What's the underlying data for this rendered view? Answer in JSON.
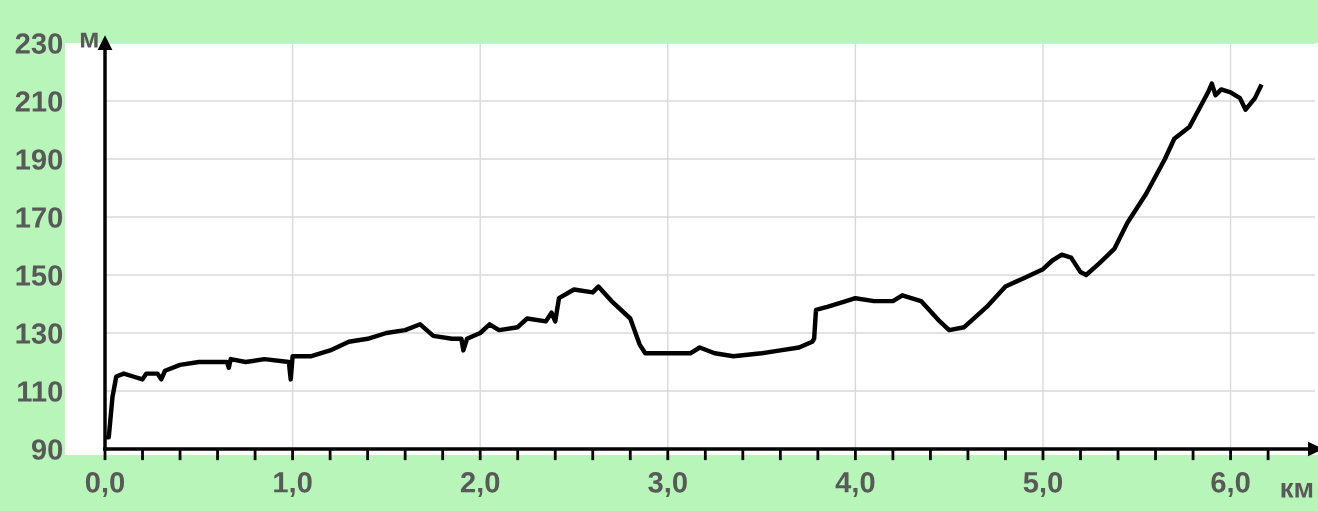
{
  "chart_data": {
    "type": "line",
    "xlabel": "км",
    "ylabel": "м",
    "x": [
      0.0,
      0.02,
      0.04,
      0.06,
      0.1,
      0.15,
      0.2,
      0.22,
      0.28,
      0.3,
      0.32,
      0.4,
      0.5,
      0.65,
      0.66,
      0.67,
      0.75,
      0.85,
      0.98,
      0.99,
      1.0,
      1.1,
      1.2,
      1.3,
      1.4,
      1.5,
      1.6,
      1.68,
      1.75,
      1.85,
      1.9,
      1.91,
      1.93,
      2.0,
      2.05,
      2.1,
      2.2,
      2.25,
      2.35,
      2.38,
      2.4,
      2.42,
      2.5,
      2.6,
      2.63,
      2.7,
      2.8,
      2.85,
      2.88,
      3.0,
      3.12,
      3.17,
      3.25,
      3.35,
      3.5,
      3.6,
      3.7,
      3.77,
      3.78,
      3.79,
      3.85,
      3.95,
      4.0,
      4.1,
      4.2,
      4.25,
      4.35,
      4.45,
      4.5,
      4.58,
      4.7,
      4.8,
      4.9,
      5.0,
      5.05,
      5.1,
      5.15,
      5.2,
      5.23,
      5.3,
      5.38,
      5.45,
      5.55,
      5.65,
      5.7,
      5.78,
      5.83,
      5.88,
      5.9,
      5.92,
      5.95,
      6.0,
      6.05,
      6.08,
      6.13,
      6.16
    ],
    "series": [
      {
        "color": "#000000",
        "values": [
          94,
          94,
          108,
          115,
          116,
          115,
          114,
          116,
          116,
          114,
          117,
          119,
          120,
          120,
          118,
          121,
          120,
          121,
          120,
          114,
          122,
          122,
          124,
          127,
          128,
          130,
          131,
          133,
          129,
          128,
          128,
          124,
          128,
          130,
          133,
          131,
          132,
          135,
          134,
          137,
          134,
          142,
          145,
          144,
          146,
          141,
          135,
          126,
          123,
          123,
          123,
          125,
          123,
          122,
          123,
          124,
          125,
          127,
          128,
          138,
          139,
          141,
          142,
          141,
          141,
          143,
          141,
          134,
          131,
          132,
          139,
          146,
          149,
          152,
          155,
          157,
          156,
          151,
          150,
          154,
          159,
          168,
          178,
          190,
          197,
          201,
          207,
          213,
          216,
          212,
          214,
          213,
          211,
          207,
          211,
          215
        ]
      }
    ],
    "xlim": [
      0,
      6.45
    ],
    "ylim": [
      90,
      230
    ],
    "xticks": [
      {
        "value": 0,
        "label": "0,0"
      },
      {
        "value": 0.2,
        "label": null
      },
      {
        "value": 0.4,
        "label": null
      },
      {
        "value": 0.6,
        "label": null
      },
      {
        "value": 0.8,
        "label": null
      },
      {
        "value": 1,
        "label": "1,0"
      },
      {
        "value": 1.2,
        "label": null
      },
      {
        "value": 1.4,
        "label": null
      },
      {
        "value": 1.6,
        "label": null
      },
      {
        "value": 1.8,
        "label": null
      },
      {
        "value": 2,
        "label": "2,0"
      },
      {
        "value": 2.2,
        "label": null
      },
      {
        "value": 2.4,
        "label": null
      },
      {
        "value": 2.6,
        "label": null
      },
      {
        "value": 2.8,
        "label": null
      },
      {
        "value": 3,
        "label": "3,0"
      },
      {
        "value": 3.2,
        "label": null
      },
      {
        "value": 3.4,
        "label": null
      },
      {
        "value": 3.6,
        "label": null
      },
      {
        "value": 3.8,
        "label": null
      },
      {
        "value": 4,
        "label": "4,0"
      },
      {
        "value": 4.2,
        "label": null
      },
      {
        "value": 4.4,
        "label": null
      },
      {
        "value": 4.6,
        "label": null
      },
      {
        "value": 4.8,
        "label": null
      },
      {
        "value": 5,
        "label": "5,0"
      },
      {
        "value": 5.2,
        "label": null
      },
      {
        "value": 5.4,
        "label": null
      },
      {
        "value": 5.6,
        "label": null
      },
      {
        "value": 5.8,
        "label": null
      },
      {
        "value": 6,
        "label": "6,0"
      },
      {
        "value": 6.2,
        "label": null
      }
    ],
    "yticks": [
      90,
      110,
      130,
      150,
      170,
      190,
      210,
      230
    ],
    "grid": true,
    "marker": "none",
    "line_style": "solid"
  }
}
